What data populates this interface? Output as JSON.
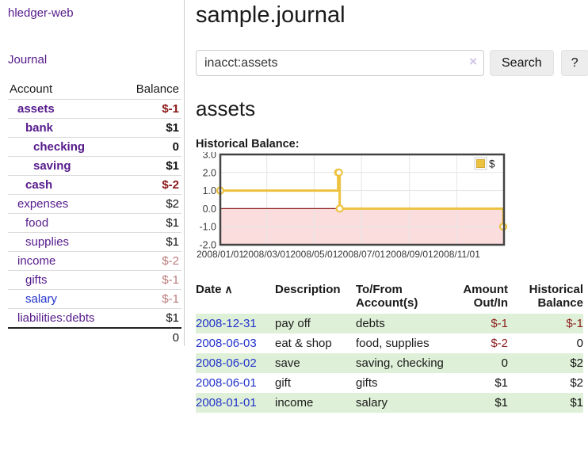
{
  "colors": {
    "link_purple": "#551a8b",
    "link_blue": "#2233cc",
    "negative_strong": "#8b1616",
    "negative_soft": "#bc7b7b",
    "row_green": "#dff0d8",
    "chart_series_gold": "#edc240",
    "chart_negative_fill": "#fbdddd",
    "chart_zero_line": "#8b1515",
    "chart_border": "#444444",
    "chart_grid": "#e5e5e5"
  },
  "sidebar": {
    "brand": "hledger-web",
    "journal_link": "Journal",
    "accounts_table": {
      "headers": [
        "Account",
        "Balance"
      ],
      "rows": [
        {
          "name": "assets",
          "balance": "$-1",
          "indent": 1,
          "bold": true,
          "name_color": "purple",
          "balance_tone": "neg-strong"
        },
        {
          "name": "bank",
          "balance": "$1",
          "indent": 2,
          "bold": true,
          "name_color": "purple",
          "balance_tone": "normal"
        },
        {
          "name": "checking",
          "balance": "0",
          "indent": 3,
          "bold": true,
          "name_color": "purple",
          "balance_tone": "normal"
        },
        {
          "name": "saving",
          "balance": "$1",
          "indent": 3,
          "bold": true,
          "name_color": "purple",
          "balance_tone": "normal"
        },
        {
          "name": "cash",
          "balance": "$-2",
          "indent": 2,
          "bold": true,
          "name_color": "purple",
          "balance_tone": "neg-strong"
        },
        {
          "name": "expenses",
          "balance": "$2",
          "indent": 1,
          "bold": false,
          "name_color": "purple",
          "balance_tone": "normal"
        },
        {
          "name": "food",
          "balance": "$1",
          "indent": 2,
          "bold": false,
          "name_color": "purple",
          "balance_tone": "normal"
        },
        {
          "name": "supplies",
          "balance": "$1",
          "indent": 2,
          "bold": false,
          "name_color": "purple",
          "balance_tone": "normal"
        },
        {
          "name": "income",
          "balance": "$-2",
          "indent": 1,
          "bold": false,
          "name_color": "purple",
          "balance_tone": "neg-soft"
        },
        {
          "name": "gifts",
          "balance": "$-1",
          "indent": 2,
          "bold": false,
          "name_color": "purple",
          "balance_tone": "neg-soft"
        },
        {
          "name": "salary",
          "balance": "$-1",
          "indent": 2,
          "bold": false,
          "name_color": "blue",
          "balance_tone": "neg-soft"
        },
        {
          "name": "liabilities:debts",
          "balance": "$1",
          "indent": 1,
          "bold": false,
          "name_color": "purple",
          "balance_tone": "normal"
        }
      ],
      "total": "0"
    }
  },
  "header": {
    "title": "sample.journal"
  },
  "search": {
    "value": "inacct:assets",
    "clear_icon": "×",
    "button_label": "Search",
    "help_label": "?"
  },
  "account_page": {
    "heading": "assets",
    "chart_label": "Historical Balance:"
  },
  "chart_data": {
    "type": "line",
    "title": "Historical Balance",
    "step": true,
    "series": [
      {
        "name": "$",
        "color": "#edc240",
        "points": [
          [
            "2008-01-01",
            1
          ],
          [
            "2008-06-01",
            2
          ],
          [
            "2008-06-02",
            2
          ],
          [
            "2008-06-03",
            0
          ],
          [
            "2008-12-31",
            -1
          ]
        ]
      }
    ],
    "x_range": [
      "2008-01-01",
      "2009-01-01"
    ],
    "x_ticks": [
      "2008/01/01",
      "2008/03/01",
      "2008/05/01",
      "2008/07/01",
      "2008/09/01",
      "2008/11/01"
    ],
    "y_ticks": [
      "3.0",
      "2.0",
      "1.0",
      "0.0",
      "-1.0",
      "-2.0"
    ],
    "ylim": [
      -2,
      3
    ],
    "grid": true,
    "legend": {
      "label": "$",
      "position": "top-right"
    },
    "negative_region_fill": "#fbdddd",
    "zero_line_color": "#8b1515",
    "border_color": "#444444",
    "grid_color": "#e5e5e5"
  },
  "transactions": {
    "headers": [
      {
        "lines": [
          "Date"
        ],
        "sort_icon_name": "chevron-up-icon",
        "sort_icon": "∧",
        "align": "l"
      },
      {
        "lines": [
          "Description"
        ],
        "align": "l"
      },
      {
        "lines": [
          "To/From",
          "Account(s)"
        ],
        "align": "l"
      },
      {
        "lines": [
          "Amount",
          "Out/In"
        ],
        "align": "r"
      },
      {
        "lines": [
          "Historical",
          "Balance"
        ],
        "align": "r"
      }
    ],
    "rows": [
      {
        "date": "2008-12-31",
        "description": "pay off",
        "to_from": "debts",
        "amount": "$-1",
        "amount_tone": "neg",
        "balance": "$-1",
        "balance_tone": "neg"
      },
      {
        "date": "2008-06-03",
        "description": "eat & shop",
        "to_from": "food, supplies",
        "amount": "$-2",
        "amount_tone": "neg",
        "balance": "0",
        "balance_tone": "normal"
      },
      {
        "date": "2008-06-02",
        "description": "save",
        "to_from": "saving, checking",
        "amount": "0",
        "amount_tone": "normal",
        "balance": "$2",
        "balance_tone": "normal"
      },
      {
        "date": "2008-06-01",
        "description": "gift",
        "to_from": "gifts",
        "amount": "$1",
        "amount_tone": "normal",
        "balance": "$2",
        "balance_tone": "normal"
      },
      {
        "date": "2008-01-01",
        "description": "income",
        "to_from": "salary",
        "amount": "$1",
        "amount_tone": "normal",
        "balance": "$1",
        "balance_tone": "normal"
      }
    ]
  }
}
